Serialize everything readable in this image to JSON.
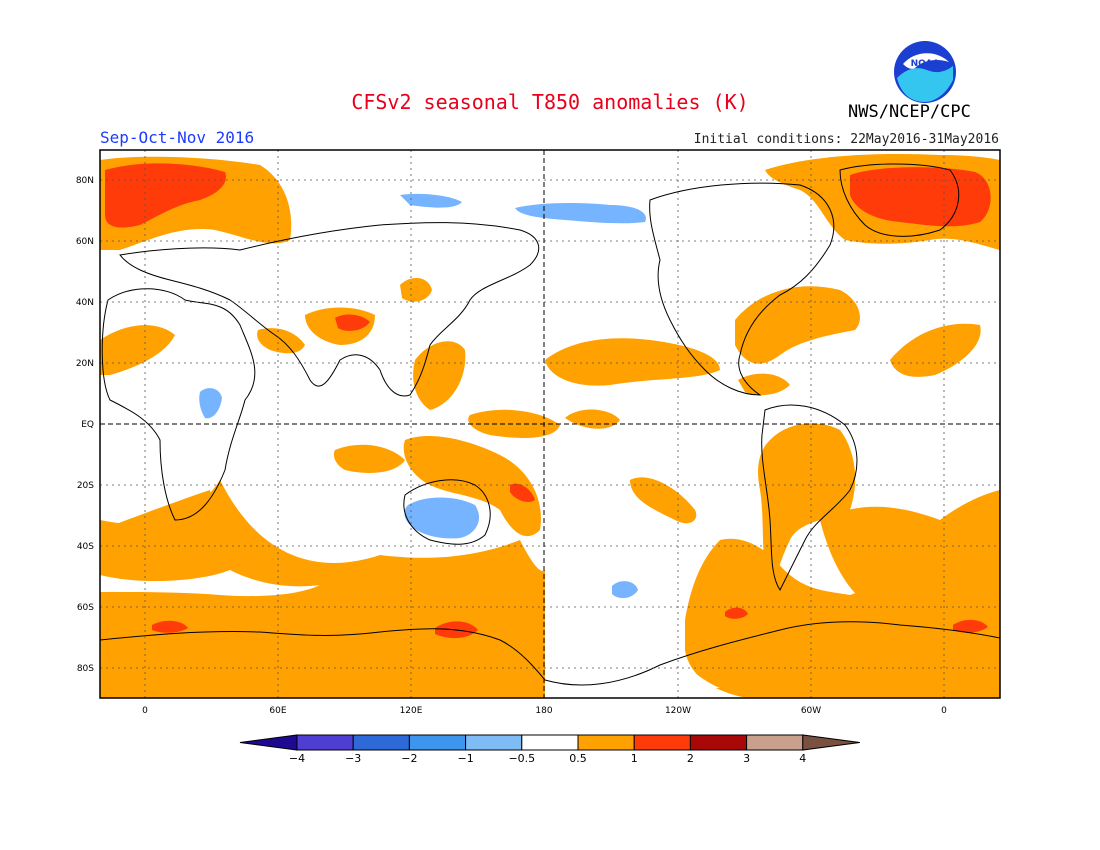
{
  "title": "CFSv2 seasonal T850 anomalies (K)",
  "agency": "NWS/NCEP/CPC",
  "logo_text": "NOAA",
  "season": "Sep-Oct-Nov 2016",
  "initial_conditions": "Initial conditions: 22May2016-31May2016",
  "colors": {
    "title": "#e8001c",
    "season": "#1e3cff",
    "orange": "#ffa100",
    "red": "#ff3b0a",
    "blue": "#77b4ff"
  },
  "lat_labels": [
    "80N",
    "60N",
    "40N",
    "20N",
    "EQ",
    "20S",
    "40S",
    "60S",
    "80S"
  ],
  "lon_labels": [
    "0",
    "60E",
    "120E",
    "180",
    "120W",
    "60W",
    "0"
  ],
  "colorbar": {
    "levels": [
      "-4",
      "-3",
      "-2",
      "-1",
      "-0.5",
      "0.5",
      "1",
      "2",
      "3",
      "4"
    ],
    "colors": [
      "#1e0a90",
      "#4e3fd2",
      "#2d6ad8",
      "#3e95ee",
      "#7fbcf5",
      "#ffffff",
      "#ffa100",
      "#ff3b0a",
      "#a80808",
      "#c8a08c",
      "#7a5040"
    ]
  }
}
